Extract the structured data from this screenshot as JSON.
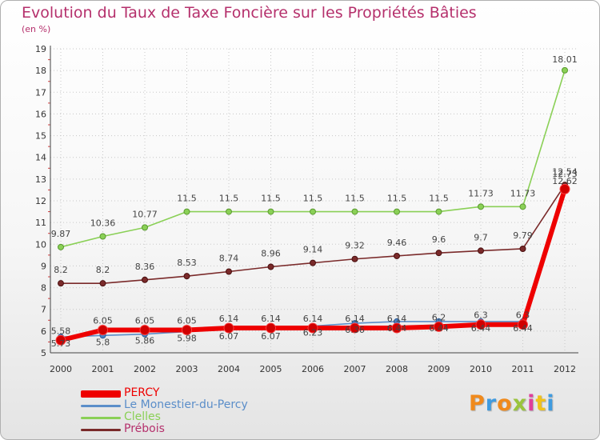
{
  "chart_data": {
    "type": "line",
    "title": "Evolution du Taux de Taxe Foncière sur les Propriétés Bâties",
    "subtitle": "(en %)",
    "xlabel": "",
    "ylabel": "(en %)",
    "ylim": [
      5,
      19
    ],
    "yticks": [
      "5",
      "6",
      "7",
      "8",
      "9",
      "10",
      "11",
      "12",
      "13",
      "14",
      "15",
      "16",
      "17",
      "18",
      "19"
    ],
    "categories": [
      "2000",
      "2001",
      "2002",
      "2003",
      "2004",
      "2005",
      "2006",
      "2007",
      "2008",
      "2009",
      "2010",
      "2011",
      "2012"
    ],
    "legend_position": "bottom-left",
    "series": [
      {
        "name": "PERCY",
        "color": "#ee0000",
        "values": [
          5.58,
          6.05,
          6.05,
          6.05,
          6.14,
          6.14,
          6.14,
          6.14,
          6.14,
          6.2,
          6.3,
          6.3,
          12.54
        ],
        "labels": [
          "5.58",
          "6.05",
          "6.05",
          "6.05",
          "6.14",
          "6.14",
          "6.14",
          "6.14",
          "6.14",
          "6.2",
          "6.3",
          "6.3",
          "12.54"
        ]
      },
      {
        "name": "Le Monestier-du-Percy",
        "color": "#5b8ec9",
        "values": [
          5.73,
          5.8,
          5.86,
          5.98,
          6.07,
          6.07,
          6.23,
          6.36,
          6.44,
          6.44,
          6.44,
          6.44,
          12.62
        ],
        "labels": [
          "5.73",
          "5.8",
          "5.86",
          "5.98",
          "6.07",
          "6.07",
          "6.23",
          "6.36",
          "6.44",
          "6.44",
          "6.44",
          "6.44",
          "12.62"
        ]
      },
      {
        "name": "Clelles",
        "color": "#8ad056",
        "values": [
          9.87,
          10.36,
          10.77,
          11.5,
          11.5,
          11.5,
          11.5,
          11.5,
          11.5,
          11.5,
          11.73,
          11.73,
          18.01
        ],
        "labels": [
          "9.87",
          "10.36",
          "10.77",
          "11.5",
          "11.5",
          "11.5",
          "11.5",
          "11.5",
          "11.5",
          "11.5",
          "11.73",
          "11.73",
          "18.01"
        ]
      },
      {
        "name": "Prébois",
        "color": "#7a2a2a",
        "values": [
          8.2,
          8.2,
          8.36,
          8.53,
          8.74,
          8.96,
          9.14,
          9.32,
          9.46,
          9.6,
          9.7,
          9.79,
          12.73
        ],
        "labels": [
          "8.2",
          "8.2",
          "8.36",
          "8.53",
          "8.74",
          "8.96",
          "9.14",
          "9.32",
          "9.46",
          "9.6",
          "9.7",
          "9.79",
          "12.73"
        ]
      }
    ]
  },
  "logo": {
    "letters": [
      "P",
      "r",
      "o",
      "x",
      "i",
      "t",
      "i"
    ],
    "colors": [
      "#f08a1c",
      "#3f9be0",
      "#f08a1c",
      "#9ac43d",
      "#e03e9b",
      "#f0c21c",
      "#3f9be0"
    ]
  }
}
